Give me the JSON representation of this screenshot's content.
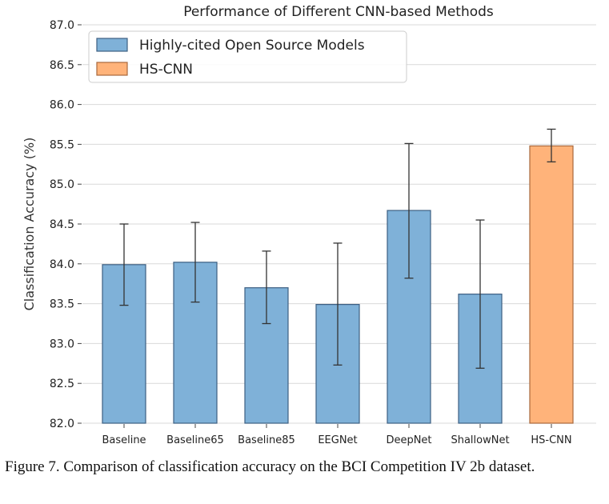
{
  "chart_data": {
    "type": "bar",
    "title": "Performance of Different CNN-based Methods",
    "ylabel": "Classification Accuracy (%)",
    "xlabel": "",
    "ylim": [
      82.0,
      87.0
    ],
    "yticks": [
      82.0,
      82.5,
      83.0,
      83.5,
      84.0,
      84.5,
      85.0,
      85.5,
      86.0,
      86.5,
      87.0
    ],
    "ytick_labels": [
      "82.0",
      "82.5",
      "83.0",
      "83.5",
      "84.0",
      "84.5",
      "85.0",
      "85.5",
      "86.0",
      "86.5",
      "87.0"
    ],
    "grid": "horizontal",
    "legend_position": "top-left",
    "categories": [
      "Baseline",
      "Baseline65",
      "Baseline85",
      "EEGNet",
      "DeepNet",
      "ShallowNet",
      "HS-CNN"
    ],
    "values": [
      83.99,
      84.02,
      83.7,
      83.49,
      84.67,
      83.62,
      85.48
    ],
    "error_low": [
      83.48,
      83.52,
      83.25,
      82.73,
      83.82,
      82.69,
      85.28
    ],
    "error_high": [
      84.5,
      84.52,
      84.16,
      84.26,
      85.51,
      84.55,
      85.69
    ],
    "groups": [
      0,
      0,
      0,
      0,
      0,
      0,
      1
    ],
    "series": [
      {
        "name": "Highly-cited Open Source Models",
        "color": "#7fb1d8",
        "edge": "#3d5f82"
      },
      {
        "name": "HS-CNN",
        "color": "#ffb37a",
        "edge": "#a8683c"
      }
    ]
  },
  "caption": "Figure 7. Comparison of classification accuracy on the BCI Competition IV 2b dataset."
}
